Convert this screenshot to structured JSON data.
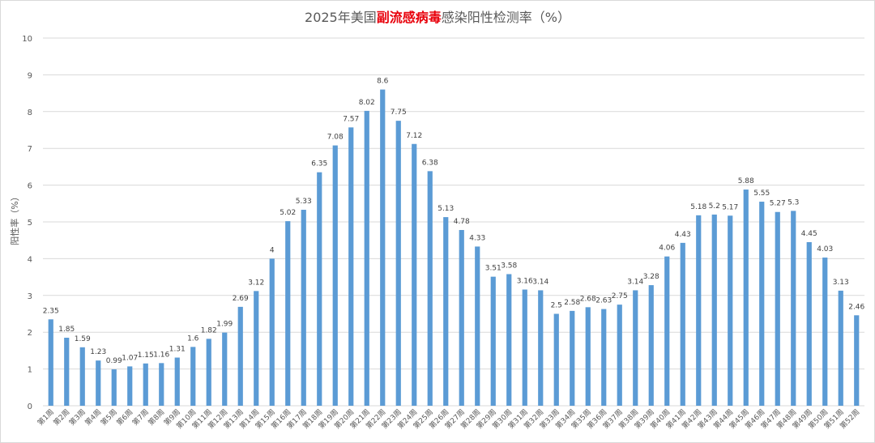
{
  "title": {
    "part1": "2025年美国",
    "highlight": "副流感病毒",
    "part2": "感染阳性检测率（%）"
  },
  "colors": {
    "bar": "#5b9bd5",
    "grid": "#d9d9d9",
    "text": "#595959",
    "highlight": "#e8000b"
  },
  "chart_data": {
    "type": "bar",
    "title": "2025年美国副流感病毒感染阳性检测率（%）",
    "xlabel": "",
    "ylabel": "阳性率（%）",
    "ylim": [
      0,
      10
    ],
    "yticks": [
      0,
      1,
      2,
      3,
      4,
      5,
      6,
      7,
      8,
      9,
      10
    ],
    "grid": true,
    "legend": "none",
    "categories": [
      "第1周",
      "第2周",
      "第3周",
      "第4周",
      "第5周",
      "第6周",
      "第7周",
      "第8周",
      "第9周",
      "第10周",
      "第11周",
      "第12周",
      "第13周",
      "第14周",
      "第15周",
      "第16周",
      "第17周",
      "第18周",
      "第19周",
      "第20周",
      "第21周",
      "第22周",
      "第23周",
      "第24周",
      "第25周",
      "第26周",
      "第27周",
      "第28周",
      "第29周",
      "第30周",
      "第31周",
      "第32周",
      "第33周",
      "第34周",
      "第35周",
      "第36周",
      "第37周",
      "第38周",
      "第39周",
      "第40周",
      "第41周",
      "第42周",
      "第43周",
      "第44周",
      "第45周",
      "第46周",
      "第47周",
      "第48周",
      "第49周",
      "第50周",
      "第51周",
      "第52周"
    ],
    "values": [
      2.35,
      1.85,
      1.59,
      1.23,
      0.99,
      1.07,
      1.15,
      1.16,
      1.31,
      1.6,
      1.82,
      1.99,
      2.69,
      3.12,
      4,
      5.02,
      5.33,
      6.35,
      7.08,
      7.57,
      8.02,
      8.6,
      7.75,
      7.12,
      6.38,
      5.13,
      4.78,
      4.33,
      3.51,
      3.58,
      3.16,
      3.14,
      2.5,
      2.58,
      2.68,
      2.63,
      2.75,
      3.14,
      3.28,
      4.06,
      4.43,
      5.18,
      5.2,
      5.17,
      5.88,
      5.55,
      5.27,
      5.3,
      4.45,
      4.03,
      3.13,
      2.46
    ]
  }
}
